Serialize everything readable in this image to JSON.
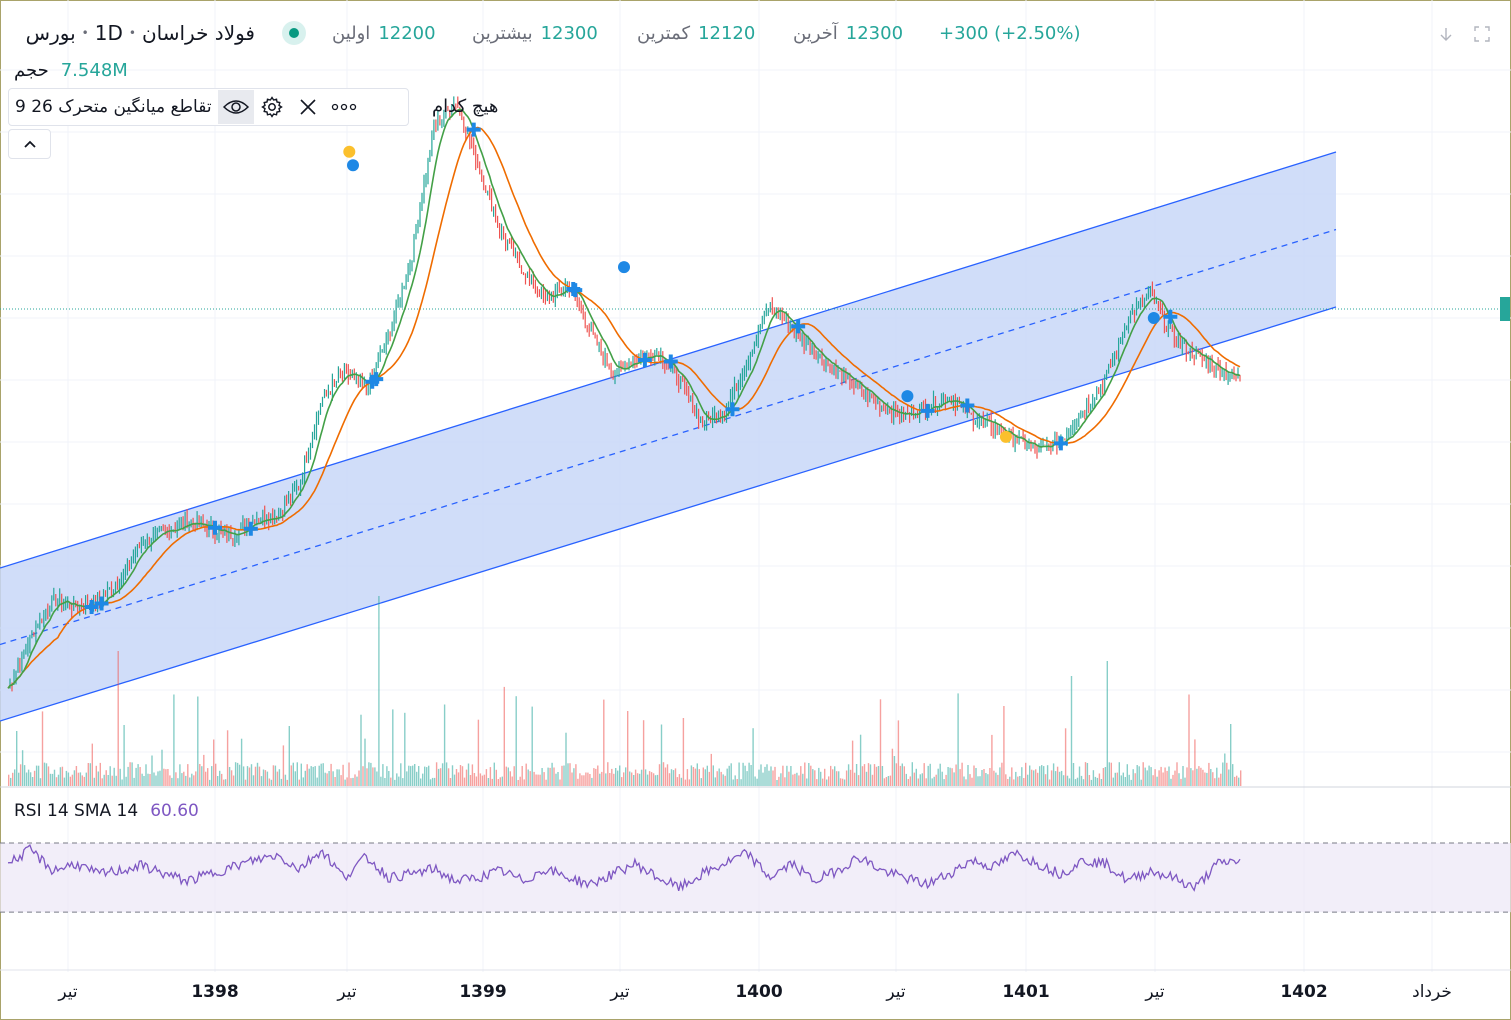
{
  "header": {
    "symbol": "فولاد خراسان",
    "interval": "1D",
    "exchange": "بورس",
    "open_label": "اولین",
    "open_value": "12200",
    "high_label": "بیشترین",
    "high_value": "12300",
    "low_label": "کمترین",
    "low_value": "12120",
    "close_label": "آخرین",
    "close_value": "12300",
    "change": "+300 (+2.50%)"
  },
  "volume": {
    "label": "حجم",
    "value": "7.548M"
  },
  "indicator": {
    "name": "تقاطع میانگین متحرک",
    "params": "9 26",
    "extra": "هیچ کدام"
  },
  "rsi": {
    "label": "RSI 14 SMA 14",
    "value": "60.60"
  },
  "x_axis": {
    "ticks": [
      {
        "label": "تیر",
        "bold": false
      },
      {
        "label": "1398",
        "bold": true
      },
      {
        "label": "تیر",
        "bold": false
      },
      {
        "label": "1399",
        "bold": true
      },
      {
        "label": "تیر",
        "bold": false
      },
      {
        "label": "1400",
        "bold": true
      },
      {
        "label": "تیر",
        "bold": false
      },
      {
        "label": "1401",
        "bold": true
      },
      {
        "label": "تیر",
        "bold": false
      },
      {
        "label": "1402",
        "bold": true
      },
      {
        "label": "خرداد",
        "bold": false
      }
    ]
  },
  "icons": [
    "live-status-icon",
    "eye-icon",
    "gear-icon",
    "close-icon",
    "more-icon",
    "chevron-up-icon",
    "arrow-down-icon",
    "fullscreen-icon"
  ],
  "colors": {
    "up": "#26a69a",
    "down": "#ef5350",
    "ma_fast": "#43a047",
    "ma_slow": "#ef6c00",
    "channel_fill": "#c8d7f8",
    "channel_line": "#2962ff",
    "rsi_line": "#7e57c2",
    "rsi_band": "#ede7f6",
    "cross_marker": "#1e88e5",
    "dot_blue": "#1e88e5",
    "dot_yellow": "#fbc02d"
  },
  "chart_data": {
    "type": "line",
    "description_series": [
      {
        "name": "price",
        "values": [
          11.0,
          12.5,
          13.6,
          13.4,
          13.5,
          14.2,
          15.3,
          15.6,
          15.9,
          15.7,
          15.5,
          16.0,
          16.1,
          17.0,
          19.5,
          20.3,
          19.8,
          21.4,
          23.6,
          27.5,
          28.3,
          26.4,
          24.4,
          23.3,
          22.4,
          22.9,
          21.5,
          20.3,
          20.7,
          20.9,
          20.0,
          18.8,
          19.2,
          20.6,
          22.3,
          21.6,
          20.9,
          20.3,
          19.8,
          19.3,
          19.0,
          19.3,
          19.6,
          19.0,
          18.7,
          18.3,
          18.0,
          18.3,
          19.2,
          20.1,
          21.9,
          22.6,
          21.3,
          20.8,
          20.4,
          20.1
        ]
      },
      {
        "name": "RSI 14",
        "values": [
          58,
          66,
          54,
          58,
          52,
          54,
          57,
          52,
          48,
          52,
          56,
          60,
          63,
          55,
          66,
          50,
          62,
          50,
          52,
          55,
          48,
          50,
          54,
          48,
          55,
          50,
          46,
          52,
          58,
          50,
          44,
          52,
          58,
          64,
          50,
          58,
          48,
          54,
          62,
          54,
          50,
          46,
          52,
          60,
          56,
          64,
          58,
          52,
          60,
          58,
          48,
          54,
          50,
          44,
          58,
          60
        ]
      }
    ],
    "rsi_levels": [
      70,
      30
    ]
  }
}
